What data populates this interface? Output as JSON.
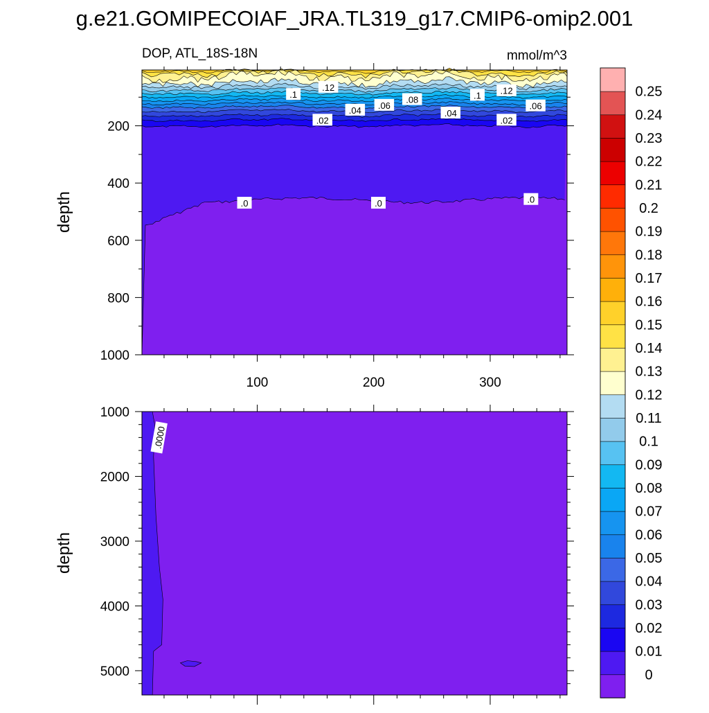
{
  "title": "g.e21.GOMIPECOIAF_JRA.TL319_g17.CMIP6-omip2.001",
  "chart_data": [
    {
      "type": "heatmap",
      "panel": "top",
      "left_label": "DOP, ATL_18S-18N",
      "right_label": "mmol/m^3",
      "ylabel": "depth",
      "xlim": [
        1,
        366
      ],
      "ylim": [
        1000,
        5
      ],
      "x_ticks": [
        "100",
        "200",
        "300"
      ],
      "y_ticks": [
        "200",
        "400",
        "600",
        "800",
        "1000"
      ],
      "contour_labels": [
        {
          "text": ".1",
          "x": 131,
          "depth": 90
        },
        {
          "text": ".12",
          "x": 161,
          "depth": 65
        },
        {
          "text": ".1",
          "x": 289,
          "depth": 93
        },
        {
          "text": ".12",
          "x": 314,
          "depth": 77
        },
        {
          "text": ".08",
          "x": 233,
          "depth": 108
        },
        {
          "text": ".06",
          "x": 209,
          "depth": 128
        },
        {
          "text": ".06",
          "x": 339,
          "depth": 130
        },
        {
          "text": ".04",
          "x": 184,
          "depth": 145
        },
        {
          "text": ".04",
          "x": 266,
          "depth": 155
        },
        {
          "text": ".02",
          "x": 156,
          "depth": 180
        },
        {
          "text": ".02",
          "x": 314,
          "depth": 180
        },
        {
          "text": ".0",
          "x": 89,
          "depth": 470
        },
        {
          "text": ".0",
          "x": 204,
          "depth": 470
        },
        {
          "text": ".0",
          "x": 335,
          "depth": 457
        }
      ]
    },
    {
      "type": "heatmap",
      "panel": "bottom",
      "ylabel": "depth",
      "xlim": [
        1,
        366
      ],
      "ylim": [
        5375,
        1000
      ],
      "y_ticks": [
        "1000",
        "2000",
        "3000",
        "4000",
        "5000"
      ],
      "contour_labels": [
        {
          "text": ".0000",
          "x": 16,
          "depth": 1400
        }
      ]
    }
  ],
  "colorbar": {
    "labels": [
      "0",
      "0.01",
      "0.02",
      "0.03",
      "0.04",
      "0.05",
      "0.06",
      "0.07",
      "0.08",
      "0.09",
      "0.1",
      "0.11",
      "0.12",
      "0.13",
      "0.14",
      "0.15",
      "0.16",
      "0.17",
      "0.18",
      "0.19",
      "0.2",
      "0.21",
      "0.22",
      "0.23",
      "0.24",
      "0.25"
    ],
    "colors": [
      "#7f1fef",
      "#4e19f2",
      "#1a06f2",
      "#1d29e0",
      "#3148dc",
      "#3b68e6",
      "#1983ed",
      "#1694f0",
      "#0aa7f5",
      "#13b8f2",
      "#57c2f2",
      "#92cbeb",
      "#b3dcf2",
      "#ffffcf",
      "#fff191",
      "#ffe245",
      "#ffd12a",
      "#ffb00a",
      "#ff940a",
      "#ff770a",
      "#ff5200",
      "#ff2b00",
      "#ec0000",
      "#cc0000",
      "#d11111",
      "#e35454",
      "#ffb0b0"
    ]
  }
}
